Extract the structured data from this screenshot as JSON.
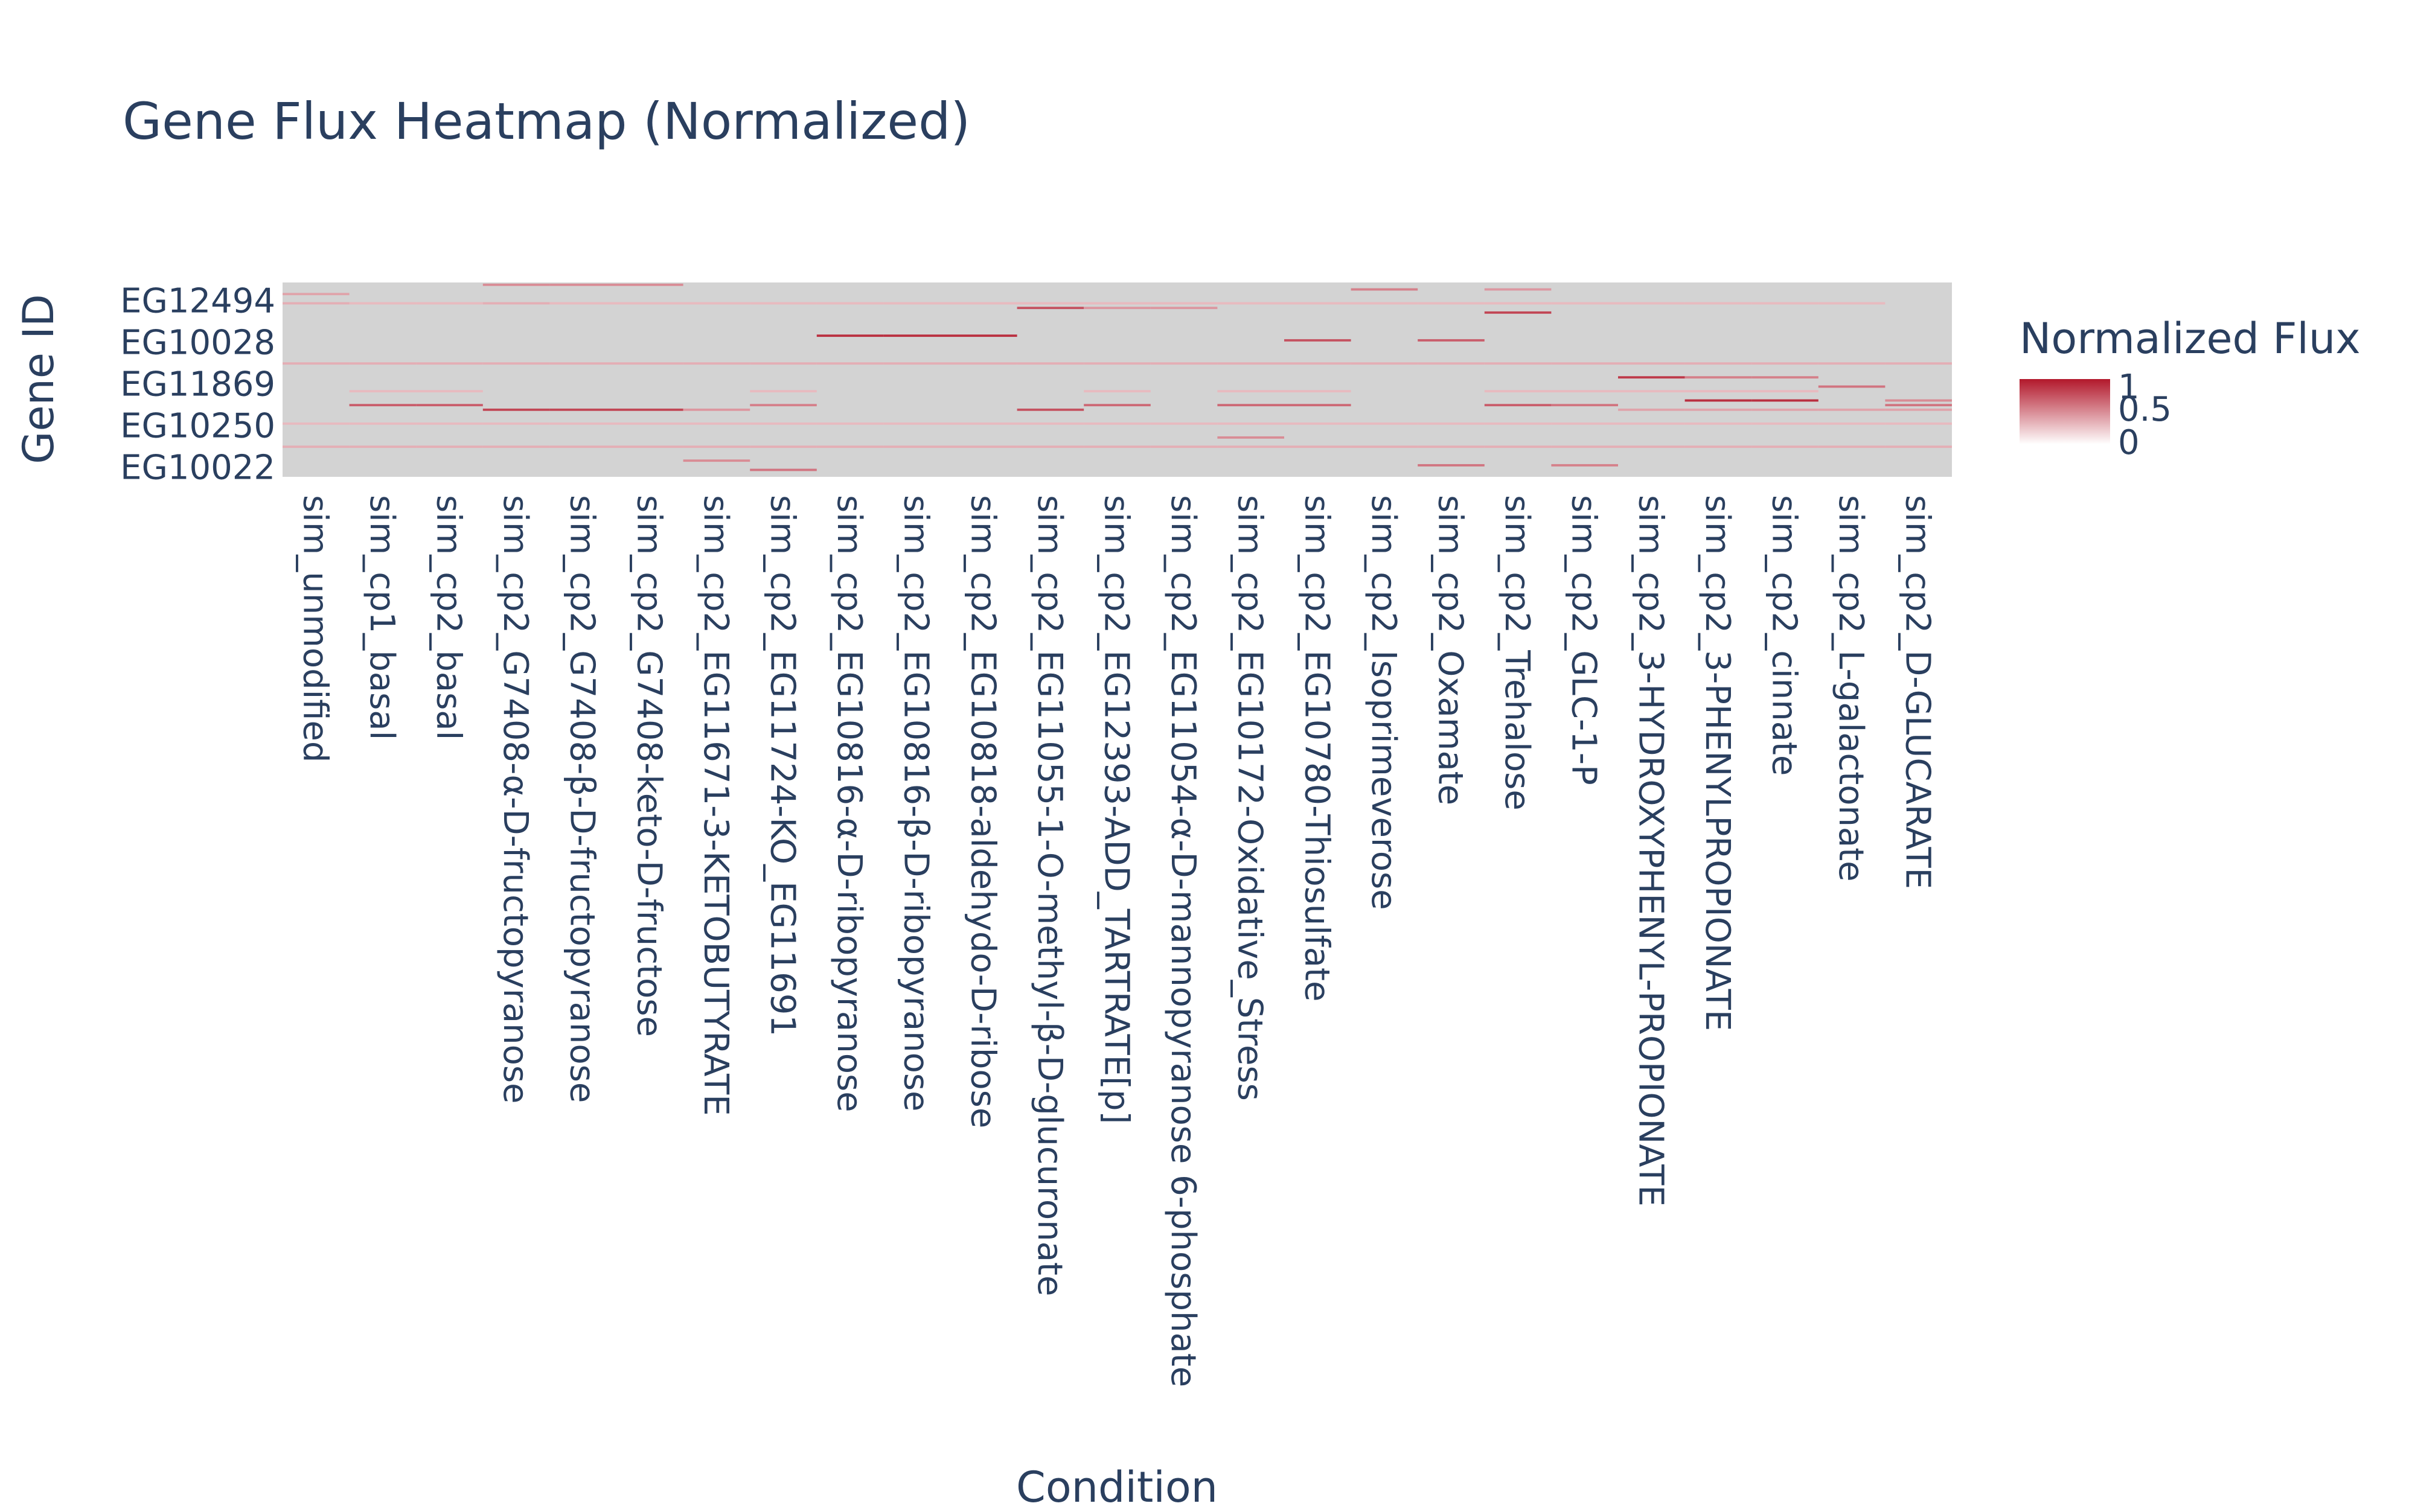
{
  "chart_data": {
    "type": "heatmap",
    "title": "Gene Flux Heatmap (Normalized)",
    "xlabel": "Condition",
    "ylabel": "Gene ID",
    "colorbar": {
      "title": "Normalized Flux",
      "ticks": [
        "1",
        "0.5",
        "0"
      ],
      "range": [
        0,
        1
      ],
      "colors": {
        "low": "#ffffff",
        "high": "#b2182b"
      }
    },
    "background_color": "#d3d3d3",
    "categories": [
      "sim_unmodified",
      "sim_cp1_basal",
      "sim_cp2_basal",
      "sim_cp2_G7408-α-D-fructopyranose",
      "sim_cp2_G7408-β-D-fructopyranose",
      "sim_cp2_G7408-keto-D-fructose",
      "sim_cp2_EG11671-3-KETOBUTYRATE",
      "sim_cp2_EG11724-KO_EG11691",
      "sim_cp2_EG10816-α-D-ribopyranose",
      "sim_cp2_EG10816-β-D-ribopyranose",
      "sim_cp2_EG10818-aldehydo-D-ribose",
      "sim_cp2_EG11055-1-O-methyl-β-D-glucuronate",
      "sim_cp2_EG12393-ADD_TARTRATE[p]",
      "sim_cp2_EG11054-α-D-mannopyranose 6-phosphate",
      "sim_cp2_EG10172-Oxidative_Stress",
      "sim_cp2_EG10780-Thiosulfate",
      "sim_cp2_Isoprimeverose",
      "sim_cp2_Oxamate",
      "sim_cp2_Trehalose",
      "sim_cp2_GLC-1-P",
      "sim_cp2_3-HYDROXYPHENYL-PROPIONATE",
      "sim_cp2_3-PHENYLPROPIONATE",
      "sim_cp2_cinnate",
      "sim_cp2_L-galactonate",
      "sim_cp2_D-GLUCARATE"
    ],
    "y_tick_labels": [
      "EG12494",
      "EG10028",
      "EG11869",
      "EG10250",
      "EG10022"
    ],
    "y_tick_rows": [
      4,
      13,
      22,
      31,
      40
    ],
    "row_count": 42,
    "nonzero_cells": [
      [
        0,
        4,
        0.35
      ],
      [
        1,
        4,
        0.3
      ],
      [
        2,
        4,
        0.3
      ],
      [
        3,
        4,
        0.35
      ],
      [
        4,
        4,
        0.3
      ],
      [
        5,
        4,
        0.3
      ],
      [
        6,
        4,
        0.3
      ],
      [
        7,
        4,
        0.3
      ],
      [
        8,
        4,
        0.3
      ],
      [
        9,
        4,
        0.3
      ],
      [
        10,
        4,
        0.3
      ],
      [
        11,
        4,
        0.3
      ],
      [
        12,
        4,
        0.3
      ],
      [
        13,
        4,
        0.3
      ],
      [
        14,
        4,
        0.3
      ],
      [
        15,
        4,
        0.3
      ],
      [
        16,
        4,
        0.3
      ],
      [
        17,
        4,
        0.3
      ],
      [
        18,
        4,
        0.3
      ],
      [
        19,
        4,
        0.3
      ],
      [
        20,
        4,
        0.3
      ],
      [
        21,
        4,
        0.3
      ],
      [
        22,
        4,
        0.3
      ],
      [
        23,
        4,
        0.3
      ],
      [
        0,
        2,
        0.4
      ],
      [
        3,
        0,
        0.5
      ],
      [
        4,
        0,
        0.5
      ],
      [
        5,
        0,
        0.5
      ],
      [
        16,
        1,
        0.55
      ],
      [
        18,
        1,
        0.45
      ],
      [
        11,
        5,
        0.75
      ],
      [
        12,
        5,
        0.45
      ],
      [
        13,
        5,
        0.45
      ],
      [
        18,
        6,
        0.8
      ],
      [
        8,
        11,
        0.9
      ],
      [
        9,
        11,
        0.9
      ],
      [
        10,
        11,
        0.9
      ],
      [
        15,
        12,
        0.75
      ],
      [
        17,
        12,
        0.7
      ],
      [
        0,
        17,
        0.35
      ],
      [
        1,
        17,
        0.35
      ],
      [
        2,
        17,
        0.35
      ],
      [
        3,
        17,
        0.35
      ],
      [
        4,
        17,
        0.35
      ],
      [
        5,
        17,
        0.35
      ],
      [
        6,
        17,
        0.35
      ],
      [
        7,
        17,
        0.35
      ],
      [
        8,
        17,
        0.35
      ],
      [
        9,
        17,
        0.35
      ],
      [
        10,
        17,
        0.35
      ],
      [
        11,
        17,
        0.35
      ],
      [
        12,
        17,
        0.35
      ],
      [
        13,
        17,
        0.35
      ],
      [
        14,
        17,
        0.35
      ],
      [
        15,
        17,
        0.35
      ],
      [
        16,
        17,
        0.35
      ],
      [
        17,
        17,
        0.35
      ],
      [
        18,
        17,
        0.35
      ],
      [
        19,
        17,
        0.35
      ],
      [
        20,
        17,
        0.35
      ],
      [
        21,
        17,
        0.35
      ],
      [
        22,
        17,
        0.35
      ],
      [
        23,
        17,
        0.35
      ],
      [
        24,
        17,
        0.35
      ],
      [
        20,
        20,
        0.85
      ],
      [
        21,
        20,
        0.55
      ],
      [
        22,
        20,
        0.55
      ],
      [
        23,
        22,
        0.6
      ],
      [
        1,
        23,
        0.3
      ],
      [
        2,
        23,
        0.3
      ],
      [
        7,
        23,
        0.3
      ],
      [
        12,
        23,
        0.3
      ],
      [
        14,
        23,
        0.3
      ],
      [
        15,
        23,
        0.3
      ],
      [
        18,
        23,
        0.3
      ],
      [
        19,
        23,
        0.3
      ],
      [
        20,
        23,
        0.3
      ],
      [
        21,
        23,
        0.3
      ],
      [
        22,
        23,
        0.3
      ],
      [
        21,
        25,
        0.9
      ],
      [
        22,
        25,
        0.9
      ],
      [
        24,
        25,
        0.5
      ],
      [
        1,
        26,
        0.7
      ],
      [
        2,
        26,
        0.7
      ],
      [
        7,
        26,
        0.55
      ],
      [
        12,
        26,
        0.65
      ],
      [
        14,
        26,
        0.65
      ],
      [
        15,
        26,
        0.65
      ],
      [
        18,
        26,
        0.7
      ],
      [
        19,
        26,
        0.6
      ],
      [
        24,
        26,
        0.6
      ],
      [
        3,
        27,
        0.8
      ],
      [
        4,
        27,
        0.8
      ],
      [
        5,
        27,
        0.8
      ],
      [
        6,
        27,
        0.45
      ],
      [
        11,
        27,
        0.75
      ],
      [
        20,
        27,
        0.4
      ],
      [
        21,
        27,
        0.4
      ],
      [
        22,
        27,
        0.4
      ],
      [
        23,
        27,
        0.4
      ],
      [
        24,
        27,
        0.4
      ],
      [
        0,
        30,
        0.3
      ],
      [
        1,
        30,
        0.3
      ],
      [
        2,
        30,
        0.3
      ],
      [
        3,
        30,
        0.3
      ],
      [
        4,
        30,
        0.3
      ],
      [
        5,
        30,
        0.3
      ],
      [
        6,
        30,
        0.3
      ],
      [
        7,
        30,
        0.3
      ],
      [
        8,
        30,
        0.3
      ],
      [
        9,
        30,
        0.3
      ],
      [
        10,
        30,
        0.3
      ],
      [
        11,
        30,
        0.3
      ],
      [
        12,
        30,
        0.3
      ],
      [
        13,
        30,
        0.3
      ],
      [
        14,
        30,
        0.3
      ],
      [
        15,
        30,
        0.3
      ],
      [
        16,
        30,
        0.3
      ],
      [
        17,
        30,
        0.3
      ],
      [
        18,
        30,
        0.3
      ],
      [
        19,
        30,
        0.3
      ],
      [
        20,
        30,
        0.3
      ],
      [
        21,
        30,
        0.3
      ],
      [
        22,
        30,
        0.3
      ],
      [
        23,
        30,
        0.3
      ],
      [
        24,
        30,
        0.3
      ],
      [
        14,
        33,
        0.5
      ],
      [
        0,
        35,
        0.35
      ],
      [
        1,
        35,
        0.35
      ],
      [
        2,
        35,
        0.35
      ],
      [
        3,
        35,
        0.35
      ],
      [
        4,
        35,
        0.35
      ],
      [
        5,
        35,
        0.35
      ],
      [
        6,
        35,
        0.35
      ],
      [
        7,
        35,
        0.35
      ],
      [
        8,
        35,
        0.35
      ],
      [
        9,
        35,
        0.35
      ],
      [
        10,
        35,
        0.35
      ],
      [
        11,
        35,
        0.35
      ],
      [
        12,
        35,
        0.35
      ],
      [
        13,
        35,
        0.35
      ],
      [
        14,
        35,
        0.35
      ],
      [
        15,
        35,
        0.35
      ],
      [
        16,
        35,
        0.35
      ],
      [
        17,
        35,
        0.35
      ],
      [
        18,
        35,
        0.35
      ],
      [
        19,
        35,
        0.35
      ],
      [
        20,
        35,
        0.35
      ],
      [
        21,
        35,
        0.35
      ],
      [
        22,
        35,
        0.35
      ],
      [
        23,
        35,
        0.35
      ],
      [
        24,
        35,
        0.35
      ],
      [
        6,
        38,
        0.5
      ],
      [
        17,
        39,
        0.6
      ],
      [
        19,
        39,
        0.55
      ],
      [
        7,
        40,
        0.6
      ]
    ]
  }
}
